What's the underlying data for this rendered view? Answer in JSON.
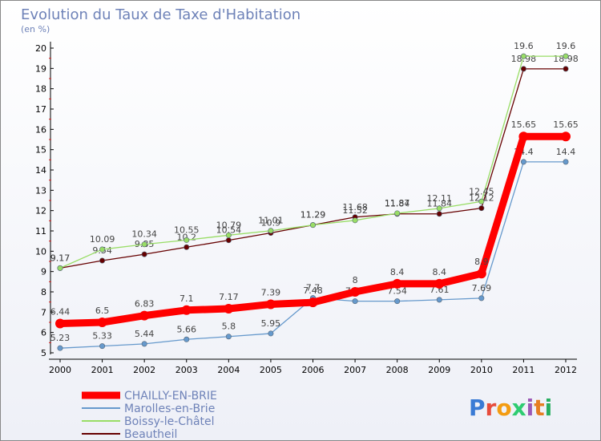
{
  "title": "Evolution du Taux de Taxe d'Habitation",
  "unit": "(en %)",
  "logo": "Proxiti",
  "chart_data": {
    "type": "line",
    "title": "Evolution du Taux de Taxe d'Habitation",
    "ylabel": "(en %)",
    "xlabel": "",
    "x": [
      2000,
      2001,
      2002,
      2003,
      2004,
      2005,
      2006,
      2007,
      2008,
      2009,
      2010,
      2011,
      2012
    ],
    "ylim": [
      5,
      20
    ],
    "yticks": [
      5,
      6,
      7,
      8,
      9,
      10,
      11,
      12,
      13,
      14,
      15,
      16,
      17,
      18,
      19,
      20
    ],
    "grid": false,
    "legend": "bottom-left",
    "series": [
      {
        "name": "CHAILLY-EN-BRIE",
        "color": "#ff0000",
        "values": [
          6.44,
          6.5,
          6.83,
          7.1,
          7.17,
          7.39,
          7.48,
          8,
          8.4,
          8.4,
          8.9,
          15.65,
          15.65
        ],
        "labels": [
          "6.44",
          "6.5",
          "6.83",
          "7.1",
          "7.17",
          "7.39",
          "7.48",
          "8",
          "8.4",
          "8.4",
          "8.9",
          "15.65",
          "15.65"
        ]
      },
      {
        "name": "Marolles-en-Brie",
        "color": "#6699cc",
        "values": [
          5.23,
          5.33,
          5.44,
          5.66,
          5.8,
          5.95,
          7.7,
          7.54,
          7.54,
          7.61,
          7.69,
          14.4,
          14.4
        ],
        "labels": [
          "5.23",
          "5.33",
          "5.44",
          "5.66",
          "5.8",
          "5.95",
          "7.7",
          "7.54",
          "7.54",
          "7.61",
          "7.69",
          "14.4",
          "14.4"
        ]
      },
      {
        "name": "Boissy-le-Châtel",
        "color": "#99dd66",
        "values": [
          9.17,
          10.09,
          10.34,
          10.55,
          10.79,
          11.01,
          11.29,
          11.52,
          11.87,
          12.11,
          12.45,
          19.6,
          19.6
        ],
        "labels": [
          "9.17",
          "10.09",
          "10.34",
          "10.55",
          "10.79",
          "11.01",
          "11.29",
          "11.52",
          "11.87",
          "12.11",
          "12.45",
          "19.6",
          "19.6"
        ]
      },
      {
        "name": "Beautheil",
        "color": "#660000",
        "values": [
          9.17,
          9.54,
          9.85,
          10.2,
          10.54,
          10.9,
          11.29,
          11.68,
          11.84,
          11.84,
          12.12,
          18.98,
          18.98
        ],
        "labels": [
          "9.17",
          "9.54",
          "9.85",
          "10.2",
          "10.54",
          "10.9",
          "11.29",
          "11.68",
          "11.84",
          "11.84",
          "12.12",
          "18.98",
          "18.98"
        ]
      }
    ]
  }
}
